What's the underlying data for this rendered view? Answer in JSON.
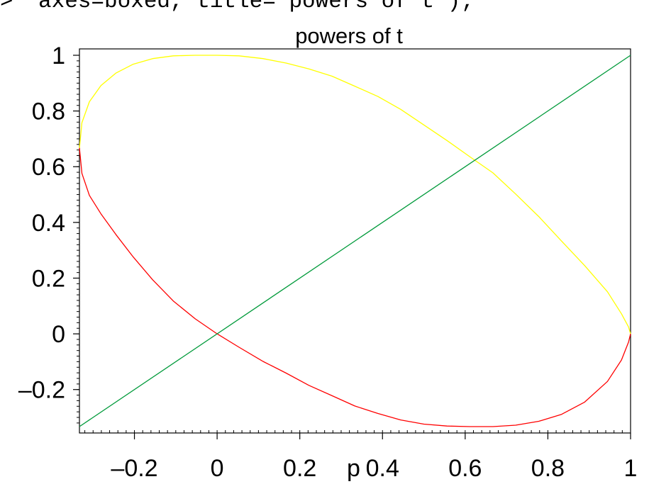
{
  "command": {
    "prompt": ">",
    "text": "axes=boxed, title=`powers of t`);"
  },
  "chart_data": {
    "type": "line",
    "title": "powers of t",
    "xlabel": "p",
    "ylabel": "",
    "xlim": [
      -0.333,
      1.0
    ],
    "ylim": [
      -0.333,
      1.0
    ],
    "xticks": [
      {
        "value": -0.2,
        "label": "–0.2"
      },
      {
        "value": 0,
        "label": "0"
      },
      {
        "value": 0.2,
        "label": "0.2"
      },
      {
        "value": 0.4,
        "label": "0.4"
      },
      {
        "value": 0.6,
        "label": "0.6"
      },
      {
        "value": 0.8,
        "label": "0.8"
      },
      {
        "value": 1,
        "label": "1"
      }
    ],
    "yticks": [
      {
        "value": -0.2,
        "label": "–0.2"
      },
      {
        "value": 0,
        "label": "0"
      },
      {
        "value": 0.2,
        "label": "0.2"
      },
      {
        "value": 0.4,
        "label": "0.4"
      },
      {
        "value": 0.6,
        "label": "0.6"
      },
      {
        "value": 0.8,
        "label": "0.8"
      },
      {
        "value": 1,
        "label": "1"
      }
    ],
    "frame": "boxed",
    "grid": false,
    "legend": "none",
    "series": [
      {
        "color": "#ffff00",
        "points": [
          [
            -0.333,
            0.667
          ],
          [
            -0.327,
            0.758
          ],
          [
            -0.309,
            0.833
          ],
          [
            -0.281,
            0.891
          ],
          [
            -0.245,
            0.936
          ],
          [
            -0.203,
            0.968
          ],
          [
            -0.156,
            0.988
          ],
          [
            -0.106,
            0.998
          ],
          [
            -0.053,
            1.0
          ],
          [
            0.0,
            1.0
          ],
          [
            0.053,
            0.998
          ],
          [
            0.111,
            0.988
          ],
          [
            0.167,
            0.972
          ],
          [
            0.222,
            0.951
          ],
          [
            0.278,
            0.925
          ],
          [
            0.333,
            0.889
          ],
          [
            0.389,
            0.852
          ],
          [
            0.444,
            0.806
          ],
          [
            0.5,
            0.75
          ],
          [
            0.556,
            0.694
          ],
          [
            0.611,
            0.636
          ],
          [
            0.667,
            0.578
          ],
          [
            0.722,
            0.502
          ],
          [
            0.778,
            0.421
          ],
          [
            0.833,
            0.333
          ],
          [
            0.889,
            0.245
          ],
          [
            0.944,
            0.151
          ],
          [
            0.978,
            0.072
          ],
          [
            0.995,
            0.025
          ],
          [
            1.0,
            0.0
          ]
        ]
      },
      {
        "color": "#ff0000",
        "points": [
          [
            -0.333,
            0.667
          ],
          [
            -0.327,
            0.576
          ],
          [
            -0.309,
            0.497
          ],
          [
            -0.281,
            0.431
          ],
          [
            -0.245,
            0.357
          ],
          [
            -0.203,
            0.276
          ],
          [
            -0.156,
            0.194
          ],
          [
            -0.106,
            0.118
          ],
          [
            -0.053,
            0.054
          ],
          [
            0.0,
            0.0
          ],
          [
            0.053,
            -0.048
          ],
          [
            0.111,
            -0.099
          ],
          [
            0.167,
            -0.141
          ],
          [
            0.222,
            -0.185
          ],
          [
            0.278,
            -0.222
          ],
          [
            0.333,
            -0.259
          ],
          [
            0.389,
            -0.286
          ],
          [
            0.444,
            -0.309
          ],
          [
            0.5,
            -0.324
          ],
          [
            0.556,
            -0.331
          ],
          [
            0.611,
            -0.333
          ],
          [
            0.667,
            -0.333
          ],
          [
            0.722,
            -0.328
          ],
          [
            0.778,
            -0.314
          ],
          [
            0.833,
            -0.289
          ],
          [
            0.889,
            -0.245
          ],
          [
            0.944,
            -0.171
          ],
          [
            0.978,
            -0.094
          ],
          [
            0.995,
            -0.03
          ],
          [
            1.0,
            0.0
          ]
        ]
      },
      {
        "color": "#009a3a",
        "points": [
          [
            -0.333,
            -0.333
          ],
          [
            1.0,
            1.0
          ]
        ]
      }
    ]
  }
}
